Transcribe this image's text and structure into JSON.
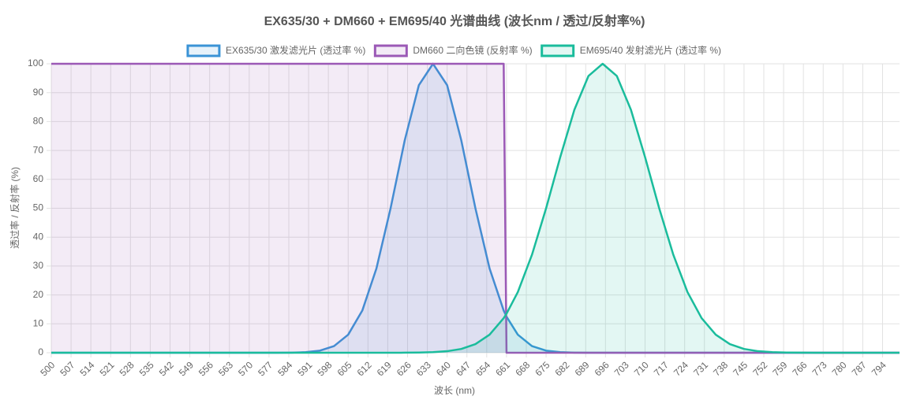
{
  "chart_data": {
    "type": "line",
    "title": "EX635/30 + DM660 + EM695/40 光谱曲线 (波长nm / 透过/反射率%)",
    "x_label": "波长 (nm)",
    "y_label": "透过率 / 反射率 (%)",
    "x": [
      500,
      505,
      510,
      515,
      520,
      525,
      530,
      535,
      540,
      545,
      550,
      555,
      560,
      565,
      570,
      575,
      580,
      585,
      590,
      595,
      600,
      605,
      610,
      615,
      620,
      625,
      630,
      635,
      640,
      645,
      650,
      655,
      660,
      661,
      665,
      670,
      675,
      680,
      685,
      690,
      695,
      700,
      705,
      710,
      715,
      720,
      725,
      730,
      735,
      740,
      745,
      750,
      755,
      760,
      765,
      770,
      775,
      780,
      785,
      790,
      795,
      800
    ],
    "series": [
      {
        "name": "EX635/30 激发滤光片 (透过率 %)",
        "color": "#3a93d6",
        "fill": "rgba(58,147,214,0.12)",
        "values": [
          0,
          0,
          0,
          0,
          0,
          0,
          0,
          0,
          0,
          0,
          0,
          0,
          0,
          0,
          0,
          0,
          0,
          0.05,
          0.2,
          0.72,
          2.3,
          6.25,
          14.6,
          29.2,
          50,
          73.5,
          92.6,
          100,
          92.6,
          73.5,
          50,
          29.2,
          14.6,
          12.5,
          6.25,
          2.3,
          0.72,
          0.2,
          0.05,
          0,
          0,
          0,
          0,
          0,
          0,
          0,
          0,
          0,
          0,
          0,
          0,
          0,
          0,
          0,
          0,
          0,
          0,
          0,
          0,
          0,
          0,
          0
        ]
      },
      {
        "name": "DM660 二向色镜 (反射率 %)",
        "color": "#9b59b6",
        "fill": "rgba(155,89,182,0.12)",
        "values": [
          100,
          100,
          100,
          100,
          100,
          100,
          100,
          100,
          100,
          100,
          100,
          100,
          100,
          100,
          100,
          100,
          100,
          100,
          100,
          100,
          100,
          100,
          100,
          100,
          100,
          100,
          100,
          100,
          100,
          100,
          100,
          100,
          100,
          0,
          0,
          0,
          0,
          0,
          0,
          0,
          0,
          0,
          0,
          0,
          0,
          0,
          0,
          0,
          0,
          0,
          0,
          0,
          0,
          0,
          0,
          0,
          0,
          0,
          0,
          0,
          0,
          0
        ]
      },
      {
        "name": "EM695/40 发射滤光片 (透过率 %)",
        "color": "#1abc9c",
        "fill": "rgba(26,188,156,0.12)",
        "values": [
          0,
          0,
          0,
          0,
          0,
          0,
          0,
          0,
          0,
          0,
          0,
          0,
          0,
          0,
          0,
          0,
          0,
          0,
          0,
          0,
          0,
          0,
          0,
          0,
          0,
          0.02,
          0.07,
          0.2,
          0.53,
          1.31,
          2.99,
          6.25,
          11.97,
          13.5,
          21,
          33.9,
          50,
          67.7,
          84.1,
          95.8,
          100,
          95.8,
          84.1,
          67.7,
          50,
          33.9,
          21,
          11.97,
          6.25,
          2.99,
          1.31,
          0.53,
          0.2,
          0.07,
          0.02,
          0,
          0,
          0,
          0,
          0,
          0,
          0
        ]
      }
    ],
    "xlim": [
      500,
      800
    ],
    "xticks": [
      500,
      507,
      514,
      521,
      528,
      535,
      542,
      549,
      556,
      563,
      570,
      577,
      584,
      591,
      598,
      605,
      612,
      619,
      626,
      633,
      640,
      647,
      654,
      661,
      668,
      675,
      682,
      689,
      696,
      703,
      710,
      717,
      724,
      731,
      738,
      745,
      752,
      759,
      766,
      773,
      780,
      787,
      794
    ],
    "ylim": [
      0,
      100
    ],
    "yticks": [
      0,
      10,
      20,
      30,
      40,
      50,
      60,
      70,
      80,
      90,
      100
    ],
    "grid": true,
    "legend": "top"
  }
}
